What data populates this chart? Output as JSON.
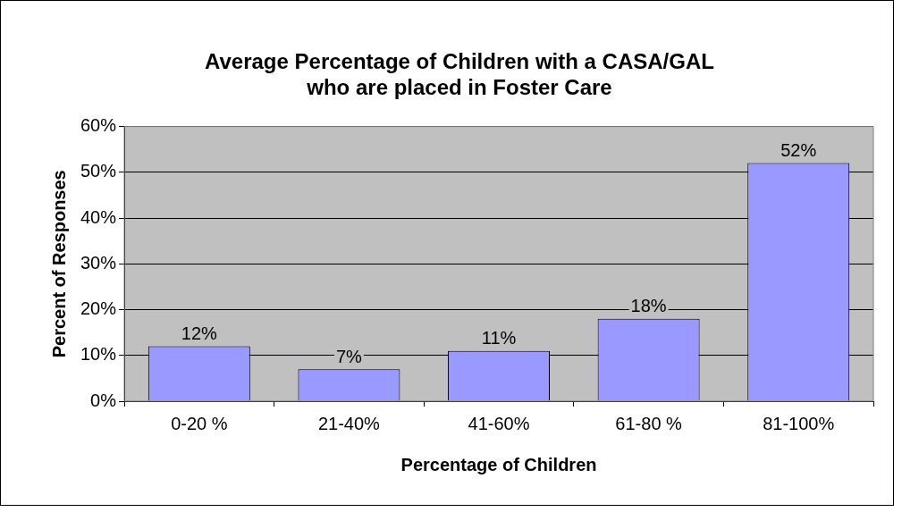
{
  "chart_data": {
    "type": "bar",
    "title": [
      "Average Percentage of Children with a CASA/GAL",
      "who are placed in Foster Care"
    ],
    "xlabel": "Percentage of Children",
    "ylabel": "Percent of Responses",
    "categories": [
      "0-20 %",
      "21-40%",
      "41-60%",
      "61-80 %",
      "81-100%"
    ],
    "values": [
      12,
      7,
      11,
      18,
      52
    ],
    "value_labels": [
      "12%",
      "7%",
      "11%",
      "18%",
      "52%"
    ],
    "color": "#9999ff",
    "ylim": [
      0,
      60
    ],
    "yticks": [
      {
        "value": 0,
        "label": "0%"
      },
      {
        "value": 10,
        "label": "10%"
      },
      {
        "value": 20,
        "label": "20%"
      },
      {
        "value": 30,
        "label": "30%"
      },
      {
        "value": 40,
        "label": "40%"
      },
      {
        "value": 50,
        "label": "50%"
      },
      {
        "value": 60,
        "label": "60%"
      }
    ],
    "grid": "y",
    "legend": false
  }
}
